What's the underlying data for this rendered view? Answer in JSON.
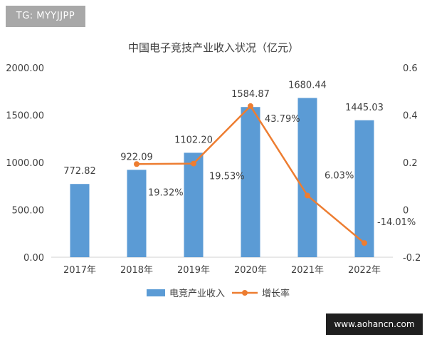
{
  "watermarks": {
    "top_left": "TG: MYYJJPP",
    "bottom_right": "www.aohancn.com"
  },
  "chart_data": {
    "type": "bar",
    "title": "中国电子竞技产业收入状况（亿元）",
    "categories": [
      "2017年",
      "2018年",
      "2019年",
      "2020年",
      "2021年",
      "2022年"
    ],
    "series": [
      {
        "name": "电竞产业收入",
        "type": "bar",
        "axis": "left",
        "color": "#5b9bd5",
        "values": [
          772.82,
          922.09,
          1102.2,
          1584.87,
          1680.44,
          1445.03
        ],
        "labels": [
          "772.82",
          "922.09",
          "1102.20",
          "1584.87",
          "1680.44",
          "1445.03"
        ]
      },
      {
        "name": "增长率",
        "type": "line",
        "axis": "right",
        "color": "#ed7d31",
        "values": [
          null,
          0.1932,
          0.1953,
          0.4379,
          0.0603,
          -0.1401
        ],
        "labels": [
          "",
          "19.32%",
          "19.53%",
          "43.79%",
          "6.03%",
          "-14.01%"
        ]
      }
    ],
    "y_left": {
      "min": 0,
      "max": 2000,
      "ticks": [
        0,
        500,
        1000,
        1500,
        2000
      ],
      "tick_labels": [
        "0.00",
        "500.00",
        "1000.00",
        "1500.00",
        "2000.00"
      ]
    },
    "y_right": {
      "min": -0.2,
      "max": 0.6,
      "ticks": [
        -0.2,
        0,
        0.2,
        0.4,
        0.6
      ],
      "tick_labels": [
        "-0.2",
        "0",
        "0.2",
        "0.4",
        "0.6"
      ]
    },
    "grid": false,
    "legend_position": "bottom"
  }
}
